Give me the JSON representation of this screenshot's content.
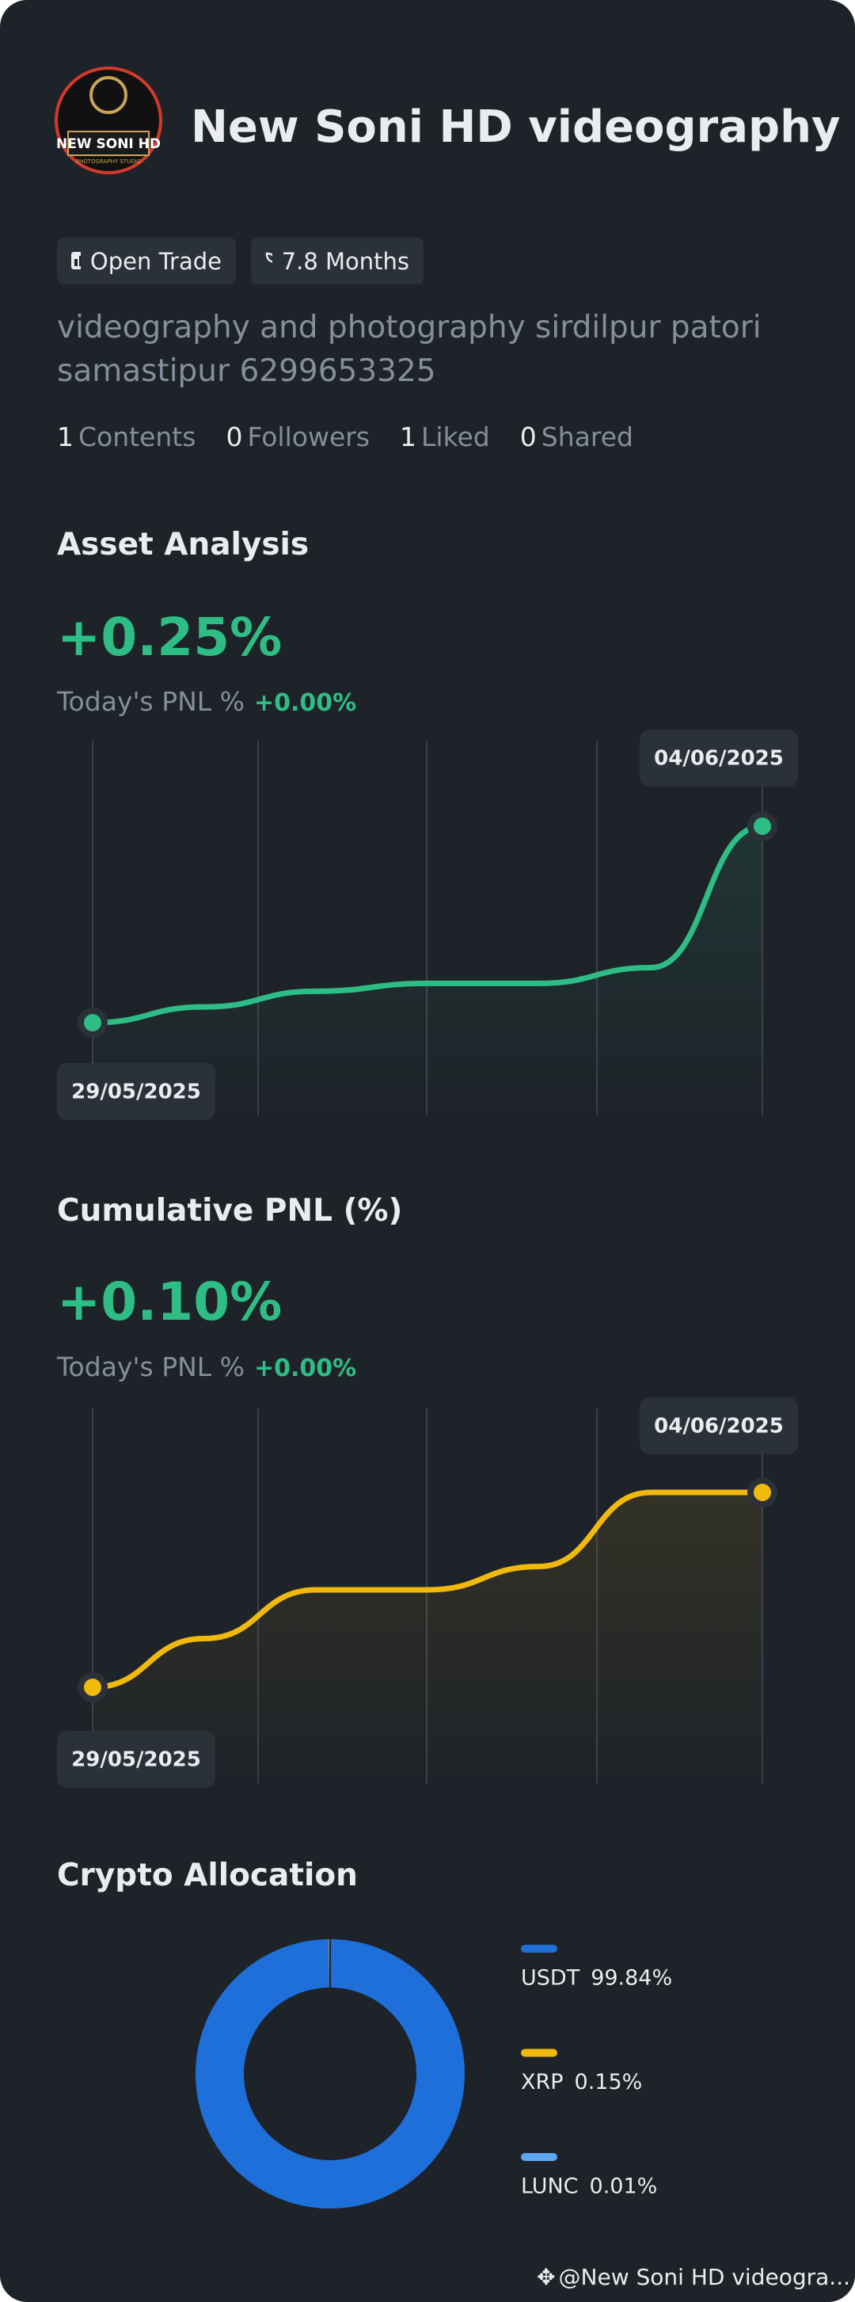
{
  "profile": {
    "avatar_text": "NEW SONI HD",
    "avatar_subtext": "PHOTOGRAPHY STUDIO",
    "name": "New Soni HD videography",
    "tags": [
      "Open Trade",
      "7.8 Months"
    ],
    "bio": "videography and photography sirdilpur patori samastipur 6299653325",
    "stats": [
      {
        "value": 1,
        "label": "Contents"
      },
      {
        "value": 0,
        "label": "Followers"
      },
      {
        "value": 1,
        "label": "Liked"
      },
      {
        "value": 0,
        "label": "Shared"
      }
    ]
  },
  "chart_data": [
    {
      "type": "line",
      "title": "Asset Analysis",
      "headline": "+0.25%",
      "subtitle": "Today's PNL %",
      "subtitle_value": "+0.00%",
      "categories": [
        "29/05/2025",
        null,
        null,
        null,
        null,
        null,
        "04/06/2025"
      ],
      "values": [
        0,
        0.02,
        0.04,
        0.05,
        0.05,
        0.07,
        0.25
      ],
      "color": "#2ebd85"
    },
    {
      "type": "line",
      "title": "Cumulative PNL (%)",
      "headline": "+0.10%",
      "subtitle": "Today's PNL %",
      "subtitle_value": "+0.00%",
      "categories": [
        "29/05/2025",
        null,
        null,
        null,
        null,
        null,
        "04/06/2025"
      ],
      "values": [
        0,
        0.025,
        0.05,
        0.05,
        0.062,
        0.1,
        0.1
      ],
      "color": "#f0b90b"
    },
    {
      "type": "pie",
      "title": "Crypto Allocation",
      "categories": [
        "USDT",
        "XRP",
        "LUNC"
      ],
      "values": [
        99.84,
        0.15,
        0.01
      ],
      "value_labels": [
        "99.84%",
        "0.15%",
        "0.01%"
      ],
      "colors": [
        "#1e6fd9",
        "#f0b90b",
        "#5ea6f2"
      ]
    }
  ],
  "footer": "@New Soni HD videogra..."
}
